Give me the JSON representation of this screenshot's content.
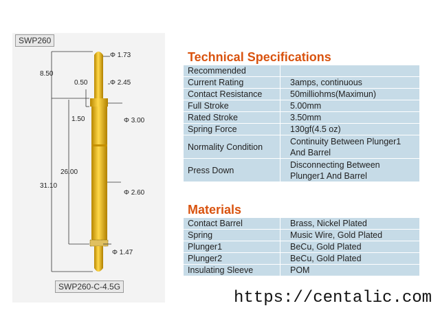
{
  "drawing": {
    "model": "SWP260",
    "part_number": "SWP260-C-4.5G",
    "dimensions": [
      "Φ 1.73",
      "8.50",
      "0.50",
      "Φ 2.45",
      "1.50",
      "Φ 3.00",
      "26.00",
      "31.10",
      "Φ 2.60",
      "Φ 1.47"
    ]
  },
  "specifications": {
    "title": "Technical Specifications",
    "rows": [
      [
        "Recommended",
        ""
      ],
      [
        "Current Rating",
        "3amps, continuous"
      ],
      [
        "Contact Resistance",
        "50milliohms(Maximun)"
      ],
      [
        "Full Stroke",
        "5.00mm"
      ],
      [
        "Rated Stroke",
        "3.50mm"
      ],
      [
        "Spring Force",
        "130gf(4.5 oz)"
      ],
      [
        "Normality Condition",
        "Continuity Between Plunger1 And Barrel"
      ],
      [
        "Press Down",
        "Disconnecting Between Plunger1 And Barrel"
      ]
    ]
  },
  "materials": {
    "title": "Materials",
    "rows": [
      [
        "Contact Barrel",
        "Brass, Nickel Plated"
      ],
      [
        "Spring",
        "Music Wire, Gold Plated"
      ],
      [
        "Plunger1",
        "BeCu, Gold Plated"
      ],
      [
        "Plunger2",
        "BeCu, Gold Plated"
      ],
      [
        "Insulating Sleeve",
        "POM"
      ]
    ]
  },
  "footer": {
    "url": "https://centalic.com"
  }
}
